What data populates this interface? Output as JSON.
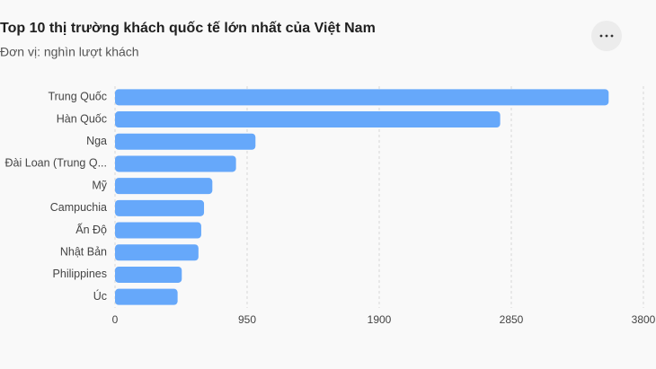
{
  "chart_data": {
    "type": "bar",
    "orientation": "horizontal",
    "title": "Top 10 thị trường khách quốc tế lớn nhất của Việt Nam",
    "subtitle": "Đơn vị: nghìn lượt khách",
    "categories": [
      "Trung Quốc",
      "Hàn Quốc",
      "Nga",
      "Đài Loan (Trung Q...",
      "Mỹ",
      "Campuchia",
      "Ấn Độ",
      "Nhật Bản",
      "Philippines",
      "Úc"
    ],
    "values": [
      3550,
      2770,
      1010,
      870,
      700,
      640,
      620,
      600,
      480,
      450
    ],
    "color": "#66a8fa",
    "xlim": [
      0,
      3800
    ],
    "xticks": [
      0,
      950,
      1900,
      2850,
      3800
    ],
    "grid": true
  }
}
